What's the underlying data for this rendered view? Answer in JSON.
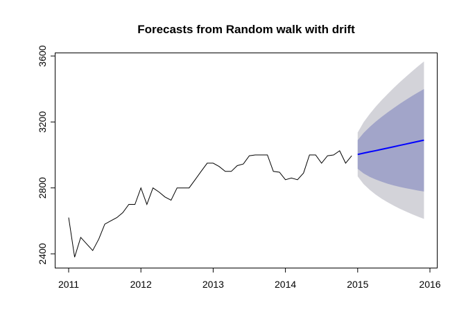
{
  "chart_data": {
    "type": "line",
    "title": "Forecasts from Random walk with drift",
    "xlabel": "",
    "ylabel": "",
    "xlim": [
      2011,
      2016
    ],
    "ylim": [
      2400,
      3600
    ],
    "x_ticks": [
      "2011",
      "2012",
      "2013",
      "2014",
      "2015",
      "2016"
    ],
    "y_ticks": [
      "2400",
      "2800",
      "3200",
      "3600"
    ],
    "grid": false,
    "legend": "none",
    "colors": {
      "history": "#000000",
      "forecast": "#0000ff",
      "pi80": "#a2a5c9",
      "pi95": "#d3d3d9"
    },
    "history": {
      "x": [
        2011.0,
        2011.083,
        2011.167,
        2011.25,
        2011.333,
        2011.417,
        2011.5,
        2011.583,
        2011.667,
        2011.75,
        2011.833,
        2011.917,
        2012.0,
        2012.083,
        2012.167,
        2012.25,
        2012.333,
        2012.417,
        2012.5,
        2012.583,
        2012.667,
        2012.75,
        2012.833,
        2012.917,
        2013.0,
        2013.083,
        2013.167,
        2013.25,
        2013.333,
        2013.417,
        2013.5,
        2013.583,
        2013.667,
        2013.75,
        2013.833,
        2013.917,
        2014.0,
        2014.083,
        2014.167,
        2014.25,
        2014.333,
        2014.417,
        2014.5,
        2014.583,
        2014.667,
        2014.75,
        2014.833,
        2014.917
      ],
      "y": [
        2620,
        2380,
        2500,
        2460,
        2420,
        2490,
        2580,
        2600,
        2620,
        2650,
        2700,
        2700,
        2800,
        2700,
        2800,
        2775,
        2745,
        2725,
        2800,
        2800,
        2800,
        2850,
        2900,
        2950,
        2950,
        2930,
        2900,
        2900,
        2935,
        2945,
        2995,
        3000,
        3000,
        3000,
        2900,
        2895,
        2850,
        2860,
        2850,
        2890,
        3000,
        3000,
        2950,
        2995,
        3000,
        3025,
        2950,
        2995
      ]
    },
    "forecast": {
      "x": [
        2015.0,
        2015.083,
        2015.167,
        2015.25,
        2015.333,
        2015.417,
        2015.5,
        2015.583,
        2015.667,
        2015.75,
        2015.833,
        2015.917
      ],
      "mean": [
        3003,
        3011,
        3019,
        3026,
        3034,
        3042,
        3050,
        3058,
        3066,
        3074,
        3082,
        3090
      ],
      "lo80": [
        2916,
        2888,
        2867,
        2851,
        2837,
        2825,
        2815,
        2806,
        2798,
        2791,
        2784,
        2778
      ],
      "hi80": [
        3090,
        3134,
        3170,
        3202,
        3231,
        3259,
        3285,
        3310,
        3334,
        3357,
        3379,
        3400
      ],
      "lo95": [
        2870,
        2823,
        2788,
        2759,
        2734,
        2712,
        2692,
        2674,
        2657,
        2641,
        2626,
        2612
      ],
      "hi95": [
        3136,
        3199,
        3249,
        3293,
        3333,
        3371,
        3407,
        3441,
        3474,
        3506,
        3537,
        3567
      ]
    }
  }
}
